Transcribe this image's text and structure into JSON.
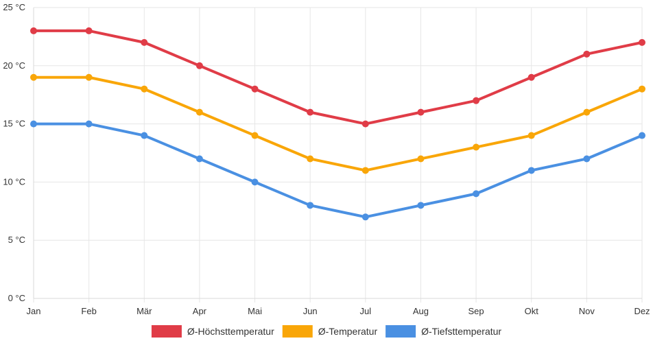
{
  "chart_data": {
    "type": "line",
    "categories": [
      "Jan",
      "Feb",
      "Mär",
      "Apr",
      "Mai",
      "Jun",
      "Jul",
      "Aug",
      "Sep",
      "Okt",
      "Nov",
      "Dez"
    ],
    "y_unit": "°C",
    "ylim": [
      0,
      25
    ],
    "y_ticks": [
      0,
      5,
      10,
      15,
      20,
      25
    ],
    "grid": true,
    "legend_position": "bottom",
    "series": [
      {
        "name": "Ø-Höchsttemperatur",
        "color": "#e03c47",
        "values": [
          23,
          23,
          22,
          20,
          18,
          16,
          15,
          16,
          17,
          19,
          21,
          22
        ]
      },
      {
        "name": "Ø-Temperatur",
        "color": "#f9a608",
        "values": [
          19,
          19,
          18,
          16,
          14,
          12,
          11,
          12,
          13,
          14,
          16,
          18
        ]
      },
      {
        "name": "Ø-Tiefsttemperatur",
        "color": "#4a90e2",
        "values": [
          15,
          15,
          14,
          12,
          10,
          8,
          7,
          8,
          9,
          11,
          12,
          14
        ]
      }
    ]
  }
}
